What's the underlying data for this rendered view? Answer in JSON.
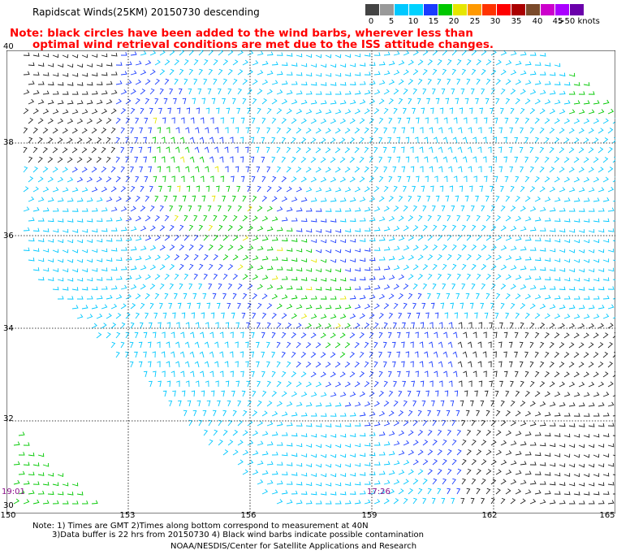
{
  "title": "Rapidscat Winds(25KM) 20150730 descending",
  "note": {
    "line1": "Note: black circles have been added to the wind barbs, wherever less than",
    "line2": "optimal wind retrieval conditions are met due to the ISS attitude changes."
  },
  "scale": {
    "colors": [
      "#444444",
      "#999999",
      "#00c8ff",
      "#00d2ff",
      "#1a3cff",
      "#00c800",
      "#e6e600",
      "#ff9900",
      "#ff3300",
      "#ff0000",
      "#aa0000",
      "#7a4a2a",
      "#cc00cc",
      "#aa00ff",
      "#6a00aa"
    ],
    "labels": [
      "0",
      "5",
      "10",
      "15",
      "20",
      "25",
      "30",
      "35",
      "40",
      "45",
      ">50 knots"
    ]
  },
  "map": {
    "y_labels": [
      "40",
      "38",
      "36",
      "34",
      "32",
      "30"
    ],
    "x_labels": [
      "150",
      "153",
      "156",
      "159",
      "162",
      "165"
    ],
    "lat_range": [
      30,
      40
    ],
    "lon_range": [
      150,
      165
    ],
    "pass_times": [
      "19:01",
      "17:26"
    ]
  },
  "footer": {
    "line1": "Note: 1) Times are GMT 2)Times along bottom correspond to measurement at 40N",
    "line2": "3)Data buffer is 22 hrs from 20150730 4) Black wind barbs indicate possible contamination",
    "line3": "NOAA/NESDIS/Center for Satellite Applications and Research"
  }
}
